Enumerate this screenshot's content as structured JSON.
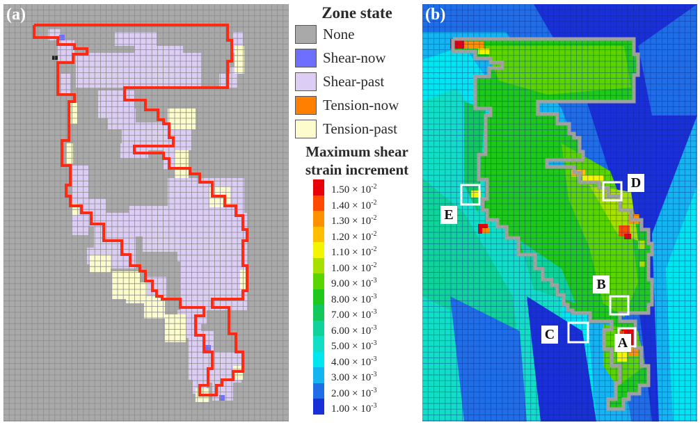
{
  "panel_a": {
    "label": "(a)"
  },
  "panel_b": {
    "label": "(b)",
    "points": [
      {
        "label": "A"
      },
      {
        "label": "B"
      },
      {
        "label": "C"
      },
      {
        "label": "D"
      },
      {
        "label": "E"
      }
    ]
  },
  "zone_legend": {
    "title": "Zone state",
    "items": [
      {
        "label": "None",
        "color": "#a9a9a9"
      },
      {
        "label": "Shear-now",
        "color": "#6f6fff"
      },
      {
        "label": "Shear-past",
        "color": "#dccdf5"
      },
      {
        "label": "Tension-now",
        "color": "#ff7f00"
      },
      {
        "label": "Tension-past",
        "color": "#fcfccc"
      }
    ]
  },
  "strain_legend": {
    "title_line1": "Maximum shear",
    "title_line2": "strain increment",
    "levels": [
      {
        "mantissa": "1.50",
        "exp": "-2",
        "color": "#e8000b"
      },
      {
        "mantissa": "1.40",
        "exp": "-2",
        "color": "#ff4a00"
      },
      {
        "mantissa": "1.30",
        "exp": "-2",
        "color": "#ff9000"
      },
      {
        "mantissa": "1.20",
        "exp": "-2",
        "color": "#ffbf00"
      },
      {
        "mantissa": "1.10",
        "exp": "-2",
        "color": "#f4f400"
      },
      {
        "mantissa": "1.00",
        "exp": "-2",
        "color": "#a5e000"
      },
      {
        "mantissa": "9.00",
        "exp": "-3",
        "color": "#5ad400"
      },
      {
        "mantissa": "8.00",
        "exp": "-3",
        "color": "#1fc81a"
      },
      {
        "mantissa": "7.00",
        "exp": "-3",
        "color": "#12c85a"
      },
      {
        "mantissa": "6.00",
        "exp": "-3",
        "color": "#10d29a"
      },
      {
        "mantissa": "5.00",
        "exp": "-3",
        "color": "#12dec6"
      },
      {
        "mantissa": "4.00",
        "exp": "-3",
        "color": "#00e6ee"
      },
      {
        "mantissa": "3.00",
        "exp": "-3",
        "color": "#15b3f0"
      },
      {
        "mantissa": "2.00",
        "exp": "-3",
        "color": "#1f6ee8"
      },
      {
        "mantissa": "1.00",
        "exp": "-3",
        "color": "#1a2fd8"
      }
    ]
  },
  "style": {
    "boundary_a_color": "#ff2a14",
    "boundary_b_color": "#a0a0a0",
    "grid_color_a": "#8c8c8c",
    "grid_color_b": "#0b2a8a"
  }
}
